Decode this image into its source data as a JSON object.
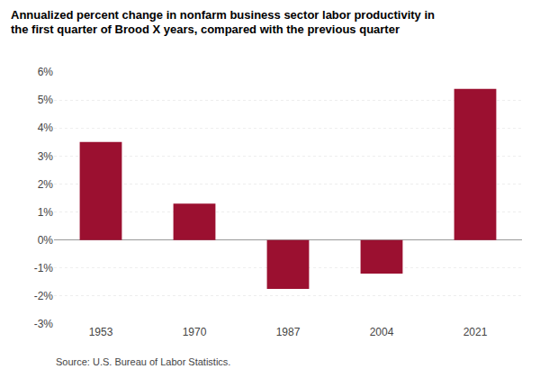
{
  "chart_data": {
    "type": "bar",
    "title": "Annualized percent change in nonfarm business sector labor productivity in\nthe first quarter of Brood X years, compared with the previous quarter",
    "categories": [
      "1953",
      "1970",
      "1987",
      "2004",
      "2021"
    ],
    "values": [
      3.5,
      1.3,
      -1.75,
      -1.2,
      5.4
    ],
    "color": "#9B1030",
    "ylim": [
      -3,
      6
    ],
    "yticks": [
      {
        "value": -3,
        "label": "-3%"
      },
      {
        "value": -2,
        "label": "-2%"
      },
      {
        "value": -1,
        "label": "-1%"
      },
      {
        "value": 0,
        "label": "0%"
      },
      {
        "value": 1,
        "label": "1%"
      },
      {
        "value": 2,
        "label": "2%"
      },
      {
        "value": 3,
        "label": "3%"
      },
      {
        "value": 4,
        "label": "4%"
      },
      {
        "value": 5,
        "label": "5%"
      },
      {
        "value": 6,
        "label": "6%"
      }
    ],
    "grid": true,
    "annotations": [
      "Source: U.S. Bureau of Labor Statistics."
    ]
  }
}
